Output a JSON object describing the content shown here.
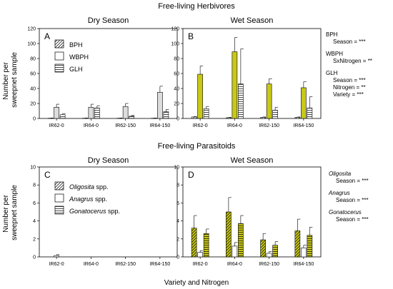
{
  "figure": {
    "row_titles": [
      "Free-living Herbivores",
      "Free-living Parasitoids"
    ],
    "ylabel_lines": [
      "Number per",
      "sweepnet sample"
    ],
    "xlabel": "Variety and Nitrogen"
  },
  "colors": {
    "bar_light": "#dcdcdc",
    "bar_yellow": "#c8c818",
    "bar_white": "#ffffff"
  },
  "chart_data": [
    {
      "type": "bar",
      "title": "Dry Season",
      "panel_letter": "A",
      "categories": [
        "IR62-0",
        "IR64-0",
        "IR62-150",
        "IR64-150"
      ],
      "ylim": [
        0,
        120
      ],
      "yticks": [
        0,
        20,
        40,
        60,
        80,
        100,
        120
      ],
      "legend": [
        {
          "label": "BPH",
          "pattern": "diag"
        },
        {
          "label": "WBPH",
          "pattern": "plain"
        },
        {
          "label": "GLH",
          "pattern": "horiz"
        }
      ],
      "series": [
        {
          "name": "BPH",
          "values": [
            0.3,
            0.3,
            0.3,
            0.3
          ],
          "errors": [
            0.3,
            0.3,
            0.3,
            0.3
          ],
          "pattern": "diag"
        },
        {
          "name": "WBPH",
          "values": [
            15,
            15,
            16,
            35
          ],
          "errors": [
            4,
            4,
            4,
            8
          ],
          "pattern": "plain"
        },
        {
          "name": "GLH",
          "values": [
            5,
            14,
            3,
            9
          ],
          "errors": [
            1.5,
            3,
            1,
            3
          ],
          "pattern": "horiz"
        }
      ]
    },
    {
      "type": "bar",
      "title": "Wet Season",
      "panel_letter": "B",
      "categories": [
        "IR62-0",
        "IR64-0",
        "IR62-150",
        "IR64-150"
      ],
      "ylim": [
        0,
        120
      ],
      "yticks": [
        0,
        20,
        40,
        60,
        80,
        100,
        120
      ],
      "series": [
        {
          "name": "BPH",
          "values": [
            2,
            1,
            1.5,
            1.5
          ],
          "errors": [
            0.5,
            0.5,
            0.5,
            0.5
          ],
          "pattern": "diag"
        },
        {
          "name": "WBPH",
          "values": [
            59,
            89,
            46,
            41
          ],
          "errors": [
            11,
            19,
            7,
            8
          ],
          "pattern": "plain"
        },
        {
          "name": "GLH",
          "values": [
            13,
            46,
            11,
            14
          ],
          "errors": [
            3,
            47,
            4,
            15
          ],
          "pattern": "horiz"
        }
      ],
      "stats": [
        {
          "group": "BPH",
          "lines": [
            "Season = ***"
          ]
        },
        {
          "group": "WBPH",
          "lines": [
            "SxNitrogen = **"
          ]
        },
        {
          "group": "GLH",
          "lines": [
            "Season = ***",
            "Nitrogen = **",
            "Variety = ***"
          ]
        }
      ]
    },
    {
      "type": "bar",
      "title": "Dry Season",
      "panel_letter": "C",
      "categories": [
        "IR62-0",
        "IR64-0",
        "IR62-150",
        "IR64-150"
      ],
      "ylim": [
        0,
        10
      ],
      "yticks": [
        0,
        2,
        4,
        6,
        8,
        10
      ],
      "legend": [
        {
          "italic": "Oligosita",
          "rest": " spp.",
          "pattern": "diag"
        },
        {
          "italic": "Anagrus",
          "rest": " spp.",
          "pattern": "plain"
        },
        {
          "italic": "Gonatocerus",
          "rest": " spp.",
          "pattern": "horiz"
        }
      ],
      "series": [
        {
          "name": "Oligosita spp.",
          "values": [
            0,
            0,
            0,
            0
          ],
          "errors": [
            0,
            0,
            0,
            0
          ],
          "pattern": "diag"
        },
        {
          "name": "Anagrus spp.",
          "values": [
            0.15,
            0,
            0,
            0
          ],
          "errors": [
            0.1,
            0,
            0,
            0
          ],
          "pattern": "plain"
        },
        {
          "name": "Gonatocerus spp.",
          "values": [
            0,
            0,
            0,
            0
          ],
          "errors": [
            0,
            0,
            0,
            0
          ],
          "pattern": "horiz"
        }
      ]
    },
    {
      "type": "bar",
      "title": "Wet Season",
      "panel_letter": "D",
      "categories": [
        "IR62-0",
        "IR64-0",
        "IR62-150",
        "IR64-150"
      ],
      "ylim": [
        0,
        10
      ],
      "yticks": [
        0,
        2,
        4,
        6,
        8,
        10
      ],
      "series": [
        {
          "name": "Oligosita spp.",
          "values": [
            3.2,
            5.0,
            1.9,
            2.9
          ],
          "errors": [
            1.4,
            1.6,
            0.7,
            1.3
          ],
          "pattern": "diag"
        },
        {
          "name": "Anagrus spp.",
          "values": [
            0.5,
            1.2,
            0.4,
            1.0
          ],
          "errors": [
            0.2,
            0.4,
            0.2,
            0.3
          ],
          "pattern": "plain"
        },
        {
          "name": "Gonatocerus spp.",
          "values": [
            2.6,
            3.7,
            1.3,
            2.4
          ],
          "errors": [
            0.5,
            0.9,
            0.4,
            0.9
          ],
          "pattern": "horiz"
        }
      ],
      "stats": [
        {
          "group": "Oligosita",
          "lines": [
            "Season = ***"
          ]
        },
        {
          "group": "Anagrus",
          "lines": [
            "Season = ***"
          ]
        },
        {
          "group": "Gonatocerus",
          "lines": [
            "Season = ***"
          ]
        }
      ]
    }
  ]
}
